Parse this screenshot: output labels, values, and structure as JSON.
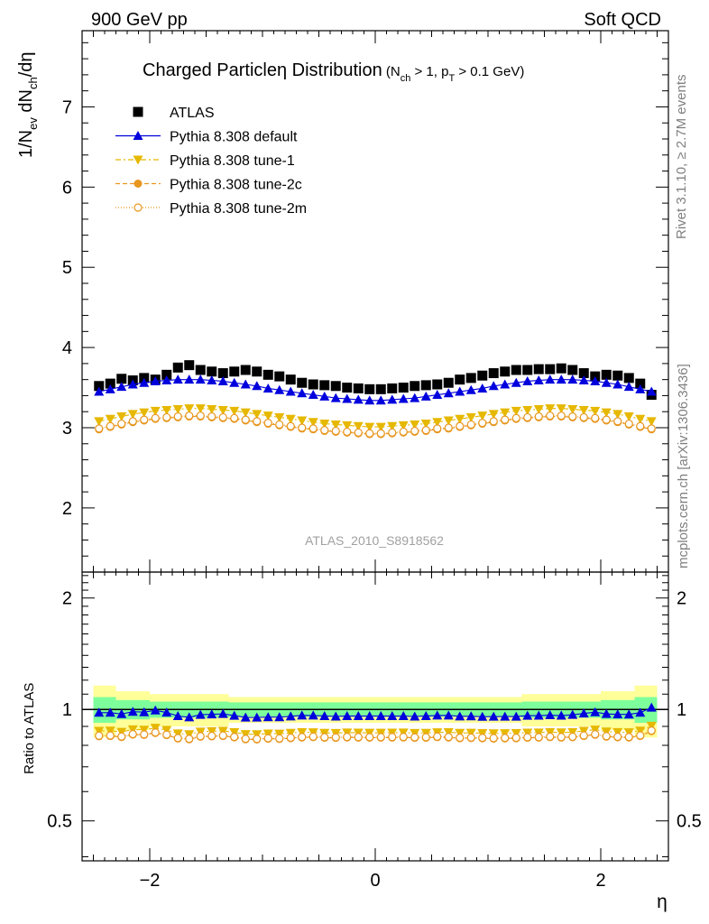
{
  "header": {
    "left": "900 GeV pp",
    "right": "Soft QCD"
  },
  "title": {
    "main": "Charged Particle",
    "eta": "η",
    "suffix": "Distribution",
    "cond_a": "(N",
    "cond_a_sub": "ch",
    "cond_b": "> 1, p",
    "cond_b_sub": "T",
    "cond_c": "> 0.1 GeV)"
  },
  "side_text": {
    "rivet": "Rivet 3.1.10, ≥ 2.7M events",
    "mcplots": "mcplots.cern.ch [arXiv:1306.3436]"
  },
  "watermark": "ATLAS_2010_S8918562",
  "ratio_ylabel": "Ratio to ATLAS",
  "xlabel": "η",
  "ylabel": {
    "p1": "1/N",
    "p1_sub": "ev",
    "p2": " dN",
    "p2_sub": "ch",
    "p3": "/dη"
  },
  "colors": {
    "data": "#000000",
    "default": "#0000dd",
    "tune1": "#e6b800",
    "tune2c": "#e8961e",
    "tune2m": "#e8961e",
    "band_inner": "#7dff9b",
    "band_outer": "#ffff99"
  },
  "chart_data": {
    "type": "scatter",
    "x": [
      -2.45,
      -2.35,
      -2.25,
      -2.15,
      -2.05,
      -1.95,
      -1.85,
      -1.75,
      -1.65,
      -1.55,
      -1.45,
      -1.35,
      -1.25,
      -1.15,
      -1.05,
      -0.95,
      -0.85,
      -0.75,
      -0.65,
      -0.55,
      -0.45,
      -0.35,
      -0.25,
      -0.15,
      -0.05,
      0.05,
      0.15,
      0.25,
      0.35,
      0.45,
      0.55,
      0.65,
      0.75,
      0.85,
      0.95,
      1.05,
      1.15,
      1.25,
      1.35,
      1.45,
      1.55,
      1.65,
      1.75,
      1.85,
      1.95,
      2.05,
      2.15,
      2.25,
      2.35,
      2.45
    ],
    "xlim": [
      -2.6,
      2.6
    ],
    "main_ylim": [
      1.2,
      7.95
    ],
    "ratio_ylim": [
      0.39,
      2.35
    ],
    "x_ticks": [
      -2,
      0,
      2
    ],
    "main_y_ticks": [
      2,
      3,
      4,
      5,
      6,
      7
    ],
    "ratio_y_ticks": [
      0.5,
      1,
      2
    ],
    "legend_position": "top-left",
    "series": [
      {
        "name": "ATLAS",
        "marker": "square",
        "values": [
          3.52,
          3.55,
          3.61,
          3.59,
          3.62,
          3.6,
          3.66,
          3.75,
          3.78,
          3.72,
          3.7,
          3.68,
          3.7,
          3.72,
          3.7,
          3.66,
          3.64,
          3.6,
          3.56,
          3.54,
          3.53,
          3.52,
          3.5,
          3.49,
          3.48,
          3.48,
          3.49,
          3.5,
          3.52,
          3.53,
          3.54,
          3.56,
          3.6,
          3.62,
          3.65,
          3.68,
          3.7,
          3.72,
          3.72,
          3.73,
          3.73,
          3.74,
          3.72,
          3.68,
          3.64,
          3.66,
          3.65,
          3.62,
          3.55,
          3.41
        ]
      },
      {
        "name": "Pythia 8.308 default",
        "marker": "triangle-up",
        "line": "solid",
        "values": [
          3.45,
          3.48,
          3.51,
          3.54,
          3.56,
          3.58,
          3.59,
          3.6,
          3.6,
          3.6,
          3.59,
          3.58,
          3.56,
          3.54,
          3.52,
          3.49,
          3.47,
          3.45,
          3.43,
          3.41,
          3.39,
          3.37,
          3.36,
          3.35,
          3.34,
          3.34,
          3.35,
          3.36,
          3.37,
          3.39,
          3.41,
          3.43,
          3.45,
          3.47,
          3.49,
          3.52,
          3.54,
          3.56,
          3.58,
          3.59,
          3.6,
          3.6,
          3.6,
          3.59,
          3.58,
          3.56,
          3.54,
          3.51,
          3.48,
          3.45
        ]
      },
      {
        "name": "Pythia 8.308 tune-1",
        "marker": "triangle-down",
        "line": "dashdot",
        "values": [
          3.08,
          3.11,
          3.14,
          3.17,
          3.19,
          3.21,
          3.22,
          3.23,
          3.24,
          3.24,
          3.23,
          3.22,
          3.21,
          3.19,
          3.17,
          3.15,
          3.13,
          3.11,
          3.09,
          3.07,
          3.05,
          3.04,
          3.03,
          3.02,
          3.01,
          3.01,
          3.02,
          3.03,
          3.04,
          3.05,
          3.07,
          3.09,
          3.11,
          3.13,
          3.15,
          3.17,
          3.19,
          3.21,
          3.22,
          3.23,
          3.24,
          3.24,
          3.23,
          3.22,
          3.21,
          3.19,
          3.17,
          3.14,
          3.11,
          3.08
        ]
      },
      {
        "name": "Pythia 8.308 tune-2c",
        "marker": "circle-filled",
        "line": "dashed",
        "values": [
          2.98,
          3.01,
          3.04,
          3.07,
          3.09,
          3.11,
          3.12,
          3.13,
          3.14,
          3.14,
          3.13,
          3.12,
          3.11,
          3.09,
          3.07,
          3.05,
          3.03,
          3.01,
          2.99,
          2.98,
          2.96,
          2.95,
          2.94,
          2.93,
          2.92,
          2.92,
          2.93,
          2.94,
          2.95,
          2.96,
          2.98,
          2.99,
          3.01,
          3.03,
          3.05,
          3.07,
          3.09,
          3.11,
          3.12,
          3.13,
          3.14,
          3.14,
          3.13,
          3.12,
          3.11,
          3.09,
          3.07,
          3.04,
          3.01,
          2.98
        ]
      },
      {
        "name": "Pythia 8.308 tune-2m",
        "marker": "circle-open",
        "line": "dotted",
        "values": [
          2.99,
          3.02,
          3.05,
          3.08,
          3.1,
          3.12,
          3.13,
          3.14,
          3.15,
          3.15,
          3.14,
          3.13,
          3.12,
          3.1,
          3.08,
          3.06,
          3.04,
          3.02,
          3.0,
          2.99,
          2.97,
          2.96,
          2.95,
          2.94,
          2.93,
          2.93,
          2.94,
          2.95,
          2.96,
          2.97,
          2.99,
          3.0,
          3.02,
          3.04,
          3.06,
          3.08,
          3.1,
          3.12,
          3.13,
          3.14,
          3.15,
          3.15,
          3.14,
          3.13,
          3.12,
          3.1,
          3.08,
          3.05,
          3.02,
          2.99
        ]
      }
    ],
    "ratio_bands": {
      "x_edges": [
        -2.5,
        -2.3,
        -2.0,
        -1.3,
        1.3,
        2.0,
        2.3,
        2.5
      ],
      "inner_lo": [
        0.92,
        0.94,
        0.95,
        0.955,
        0.95,
        0.94,
        0.92
      ],
      "inner_hi": [
        1.08,
        1.06,
        1.05,
        1.045,
        1.05,
        1.06,
        1.08
      ],
      "outer_lo": [
        0.84,
        0.88,
        0.9,
        0.92,
        0.9,
        0.88,
        0.84
      ],
      "outer_hi": [
        1.16,
        1.12,
        1.1,
        1.08,
        1.1,
        1.12,
        1.16
      ]
    }
  }
}
